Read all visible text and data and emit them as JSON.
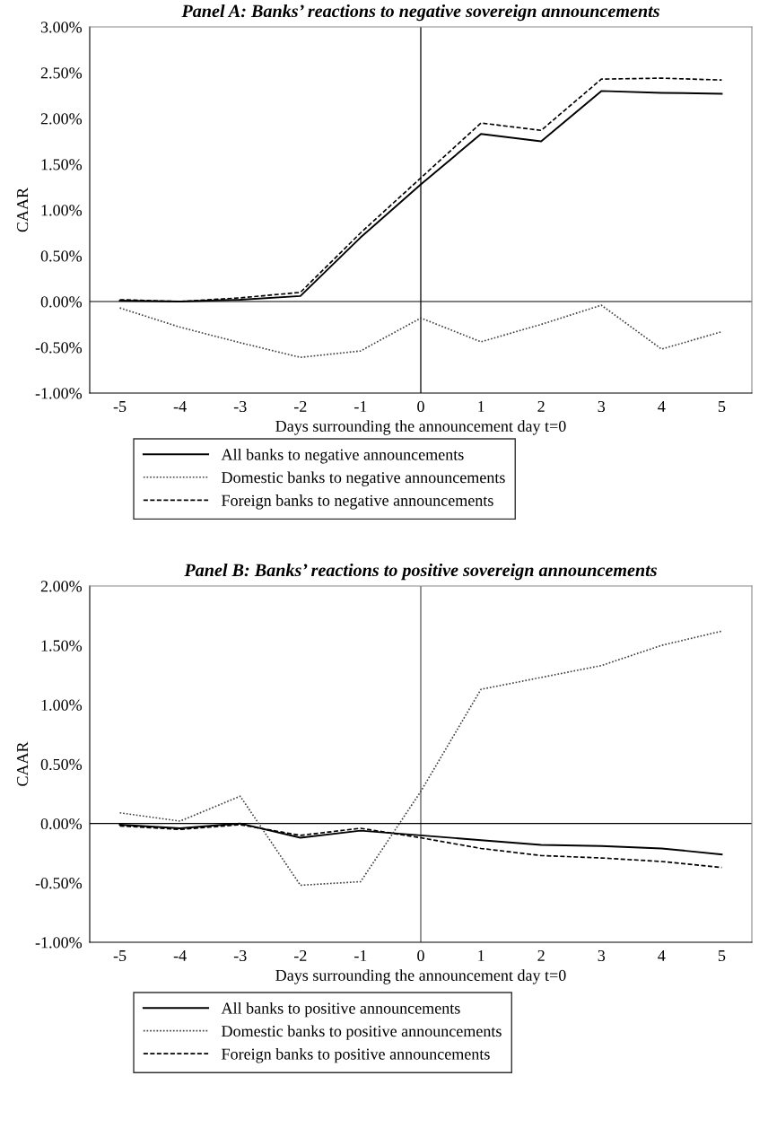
{
  "chart_data": [
    {
      "type": "line",
      "title": "Panel A: Banks’ reactions to negative sovereign announcements",
      "xlabel": "Days surrounding the announcement day t=0",
      "ylabel": "CAAR",
      "x": [
        -5,
        -4,
        -3,
        -2,
        -1,
        0,
        1,
        2,
        3,
        4,
        5
      ],
      "series": [
        {
          "name": "All banks to negative announcements",
          "color": "#000000",
          "line_style": "solid",
          "values": [
            0.01,
            0.0,
            0.02,
            0.06,
            0.7,
            1.28,
            1.83,
            1.75,
            2.3,
            2.28,
            2.27
          ]
        },
        {
          "name": "Domestic banks to negative announcements",
          "color": "#404040",
          "line_style": "dotted",
          "values": [
            -0.07,
            -0.28,
            -0.45,
            -0.61,
            -0.54,
            -0.18,
            -0.44,
            -0.25,
            -0.04,
            -0.52,
            -0.33
          ]
        },
        {
          "name": "Foreign banks to negative announcements",
          "color": "#000000",
          "line_style": "dashed",
          "values": [
            0.02,
            0.0,
            0.04,
            0.1,
            0.75,
            1.35,
            1.95,
            1.87,
            2.43,
            2.44,
            2.42
          ]
        }
      ],
      "xlim": [
        -5.5,
        5.5
      ],
      "xticks": [
        -5,
        -4,
        -3,
        -2,
        -1,
        0,
        1,
        2,
        3,
        4,
        5
      ],
      "ylim": [
        -1,
        3
      ],
      "yticks": [
        {
          "value": -1,
          "label": "-1.00%"
        },
        {
          "value": -0.5,
          "label": "-0.50%"
        },
        {
          "value": 0,
          "label": "0.00%"
        },
        {
          "value": 0.5,
          "label": "0.50%"
        },
        {
          "value": 1,
          "label": "1.00%"
        },
        {
          "value": 1.5,
          "label": "1.50%"
        },
        {
          "value": 2,
          "label": "2.00%"
        },
        {
          "value": 2.5,
          "label": "2.50%"
        },
        {
          "value": 3,
          "label": "3.00%"
        }
      ],
      "ref_lines": [
        {
          "axis": "x",
          "value": 0,
          "color": "#000000"
        },
        {
          "axis": "y",
          "value": 0,
          "color": "#000000"
        }
      ],
      "legend": "bottom",
      "grid": false,
      "marker": "none"
    },
    {
      "type": "line",
      "title": "Panel B: Banks’ reactions to positive sovereign announcements",
      "xlabel": "Days surrounding the announcement day t=0",
      "ylabel": "CAAR",
      "x": [
        -5,
        -4,
        -3,
        -2,
        -1,
        0,
        1,
        2,
        3,
        4,
        5
      ],
      "series": [
        {
          "name": "All banks to positive announcements",
          "color": "#000000",
          "line_style": "solid",
          "values": [
            -0.01,
            -0.04,
            0.0,
            -0.12,
            -0.06,
            -0.1,
            -0.14,
            -0.18,
            -0.19,
            -0.21,
            -0.26
          ]
        },
        {
          "name": "Domestic banks to positive announcements",
          "color": "#404040",
          "line_style": "dotted",
          "values": [
            0.09,
            0.02,
            0.23,
            -0.52,
            -0.49,
            0.27,
            1.13,
            1.23,
            1.33,
            1.5,
            1.62
          ]
        },
        {
          "name": "Foreign banks to positive announcements",
          "color": "#000000",
          "line_style": "dashed",
          "values": [
            -0.02,
            -0.05,
            -0.01,
            -0.1,
            -0.04,
            -0.12,
            -0.21,
            -0.27,
            -0.29,
            -0.32,
            -0.37
          ]
        }
      ],
      "xlim": [
        -5.5,
        5.5
      ],
      "xticks": [
        -5,
        -4,
        -3,
        -2,
        -1,
        0,
        1,
        2,
        3,
        4,
        5
      ],
      "ylim": [
        -1,
        2
      ],
      "yticks": [
        {
          "value": -1,
          "label": "-1.00%"
        },
        {
          "value": -0.5,
          "label": "-0.50%"
        },
        {
          "value": 0,
          "label": "0.00%"
        },
        {
          "value": 0.5,
          "label": "0.50%"
        },
        {
          "value": 1,
          "label": "1.00%"
        },
        {
          "value": 1.5,
          "label": "1.50%"
        },
        {
          "value": 2,
          "label": "2.00%"
        }
      ],
      "ref_lines": [
        {
          "axis": "x",
          "value": 0,
          "color": "#555555"
        },
        {
          "axis": "y",
          "value": 0,
          "color": "#000000"
        }
      ],
      "legend": "bottom",
      "grid": false,
      "marker": "none"
    }
  ]
}
